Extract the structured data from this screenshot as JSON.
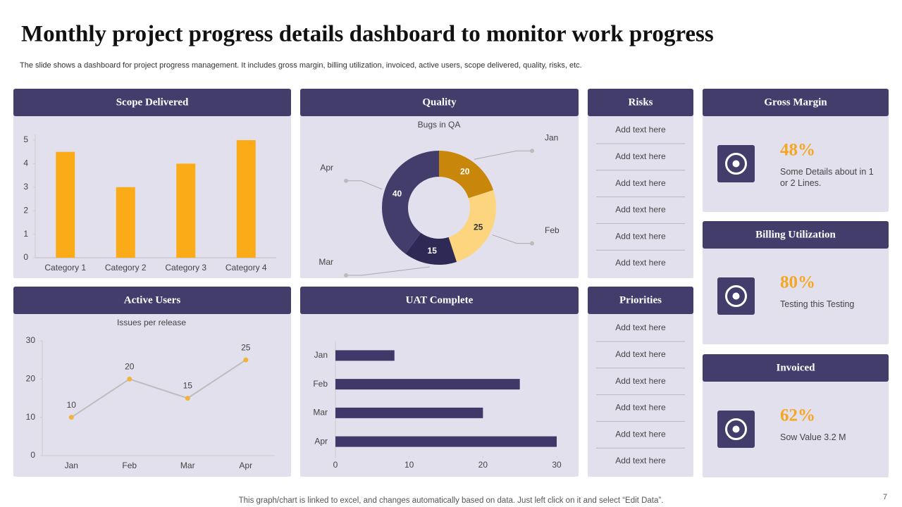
{
  "title": "Monthly project progress details dashboard to monitor work progress",
  "subtitle": "The slide shows a dashboard for project progress management. It includes gross margin, billing utilization, invoiced, active users, scope delivered, quality, risks, etc.",
  "chart_data": [
    {
      "type": "bar",
      "title": "Scope Delivered",
      "categories": [
        "Category 1",
        "Category 2",
        "Category 3",
        "Category 4"
      ],
      "values": [
        4.5,
        3,
        4,
        5
      ],
      "color": "#fbab18",
      "ylim": [
        0,
        5
      ],
      "yticks": [
        0,
        1,
        2,
        3,
        4,
        5
      ]
    },
    {
      "type": "donut",
      "title": "Quality",
      "subtitle": "Bugs in QA",
      "categories": [
        "Jan",
        "Feb",
        "Mar",
        "Apr"
      ],
      "values": [
        20,
        25,
        15,
        40
      ],
      "colors": [
        "#c8860a",
        "#fdd57e",
        "#2e2a55",
        "#433d6c"
      ],
      "label_colors": [
        "#ffffff",
        "#333333",
        "#ffffff",
        "#ffffff"
      ]
    },
    {
      "type": "line",
      "title": "Active Users",
      "subtitle": "Issues per release",
      "categories": [
        "Jan",
        "Feb",
        "Mar",
        "Apr"
      ],
      "values": [
        10,
        20,
        15,
        25
      ],
      "color": "#bdbdbd",
      "marker_color": "#f0b43c",
      "ylim": [
        0,
        30
      ],
      "yticks": [
        0,
        10,
        20,
        30
      ]
    },
    {
      "type": "hbar",
      "title": "UAT Complete",
      "categories": [
        "Jan",
        "Feb",
        "Mar",
        "Apr"
      ],
      "values": [
        8,
        25,
        20,
        30
      ],
      "color": "#3f3869",
      "xlim": [
        0,
        30
      ],
      "xticks": [
        0,
        10,
        20,
        30
      ]
    }
  ],
  "risks": {
    "title": "Risks",
    "items": [
      "Add text here",
      "Add text here",
      "Add text here",
      "Add text here",
      "Add text here",
      "Add text here"
    ]
  },
  "priorities": {
    "title": "Priorities",
    "items": [
      "Add text here",
      "Add text here",
      "Add text here",
      "Add text here",
      "Add text here",
      "Add text here"
    ]
  },
  "kpis": [
    {
      "title": "Gross Margin",
      "value": "48%",
      "text": "Some Details about in 1 or 2 Lines."
    },
    {
      "title": "Billing Utilization",
      "value": "80%",
      "text": "Testing this Testing"
    },
    {
      "title": "Invoiced",
      "value": "62%",
      "text": "Sow Value 3.2 M"
    }
  ],
  "footer": "This graph/chart is linked to excel,  and changes automatically based on data. Just left click on it and select “Edit Data”.",
  "page_number": "7"
}
